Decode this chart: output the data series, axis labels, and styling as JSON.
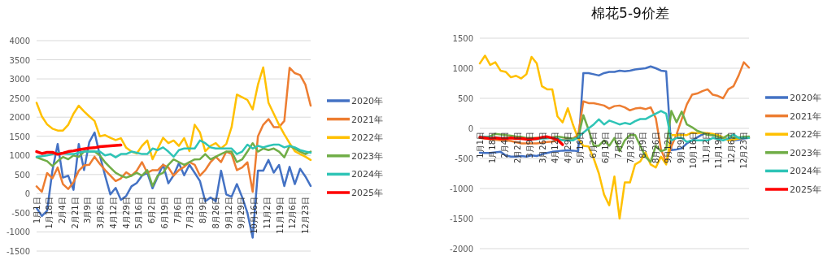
{
  "chart_data": [
    {
      "type": "line",
      "legend": "right",
      "grid": "y",
      "marker": "none",
      "line_style": "solid",
      "x": [
        "--01-01",
        "--01-08",
        "--01-15",
        "--01-22",
        "--01-29",
        "--02-05",
        "--02-12",
        "--02-19",
        "--02-26",
        "--03-04",
        "--03-11",
        "--03-18",
        "--03-25",
        "--04-01",
        "--04-08",
        "--04-15",
        "--04-22",
        "--04-29",
        "--05-06",
        "--05-13",
        "--05-20",
        "--05-27",
        "--06-03",
        "--06-10",
        "--06-17",
        "--06-24",
        "--07-01",
        "--07-08",
        "--07-15",
        "--07-22",
        "--07-29",
        "--08-05",
        "--08-12",
        "--08-19",
        "--08-26",
        "--09-02",
        "--09-09",
        "--09-16",
        "--09-23",
        "--09-30",
        "--10-07",
        "--10-14",
        "--10-21",
        "--10-28",
        "--11-04",
        "--11-11",
        "--11-18",
        "--11-25",
        "--12-02",
        "--12-09",
        "--12-16",
        "--12-23",
        "--12-30"
      ],
      "xlim": [
        "--01-01",
        "--12-30"
      ],
      "xticks": [
        {
          "value": "--01-01",
          "label": "1月1日"
        },
        {
          "value": "--01-18",
          "label": "1月18日"
        },
        {
          "value": "--02-04",
          "label": "2月4日"
        },
        {
          "value": "--02-21",
          "label": "2月21日"
        },
        {
          "value": "--03-09",
          "label": "3月9日"
        },
        {
          "value": "--03-26",
          "label": "3月26日"
        },
        {
          "value": "--04-12",
          "label": "4月12日"
        },
        {
          "value": "--04-29",
          "label": "4月29日"
        },
        {
          "value": "--05-16",
          "label": "5月16日"
        },
        {
          "value": "--06-02",
          "label": "6月2日"
        },
        {
          "value": "--06-19",
          "label": "6月19日"
        },
        {
          "value": "--07-06",
          "label": "7月6日"
        },
        {
          "value": "--07-23",
          "label": "7月23日"
        },
        {
          "value": "--08-09",
          "label": "8月9日"
        },
        {
          "value": "--08-26",
          "label": "8月26日"
        },
        {
          "value": "--09-12",
          "label": "9月12日"
        },
        {
          "value": "--09-29",
          "label": "9月29日"
        },
        {
          "value": "--10-16",
          "label": "10月16日"
        },
        {
          "value": "--11-02",
          "label": "11月2日"
        },
        {
          "value": "--11-19",
          "label": "11月19日"
        },
        {
          "value": "--12-06",
          "label": "12月6日"
        },
        {
          "value": "--12-23",
          "label": "12月23日"
        }
      ],
      "ylim": [
        -1500,
        4000
      ],
      "yticks": [
        -1500,
        -1000,
        -500,
        0,
        500,
        1000,
        1500,
        2000,
        2500,
        3000,
        3500,
        4000
      ],
      "series": [
        {
          "name": "2020年",
          "color": "#4472c4",
          "values": [
            -375,
            -585,
            -445,
            600,
            1300,
            420,
            470,
            100,
            1300,
            620,
            1350,
            1600,
            1000,
            470,
            -20,
            150,
            -160,
            -60,
            190,
            280,
            470,
            545,
            140,
            450,
            760,
            270,
            480,
            800,
            480,
            755,
            545,
            330,
            -200,
            -100,
            -200,
            600,
            -20,
            -80,
            250,
            -90,
            -500,
            -1150,
            600,
            600,
            880,
            550,
            750,
            200,
            700,
            250,
            650,
            450,
            200
          ]
        },
        {
          "name": "2021年",
          "color": "#ed7d31",
          "values": [
            190,
            50,
            540,
            400,
            685,
            250,
            120,
            300,
            600,
            740,
            755,
            965,
            780,
            615,
            470,
            330,
            400,
            560,
            470,
            600,
            825,
            545,
            615,
            615,
            755,
            685,
            470,
            615,
            700,
            825,
            755,
            470,
            615,
            825,
            965,
            825,
            1100,
            1035,
            615,
            685,
            820,
            50,
            1500,
            1800,
            1950,
            1740,
            1740,
            1900,
            3290,
            3150,
            3100,
            2850,
            2300
          ]
        },
        {
          "name": "2022年",
          "color": "#ffc000",
          "values": [
            2375,
            2020,
            1810,
            1700,
            1650,
            1650,
            1800,
            2090,
            2300,
            2150,
            2020,
            1900,
            1500,
            1530,
            1460,
            1400,
            1450,
            1200,
            1100,
            1050,
            1250,
            1390,
            900,
            1180,
            1460,
            1320,
            1390,
            1250,
            1450,
            1110,
            1800,
            1600,
            1110,
            1250,
            1320,
            1180,
            1300,
            1740,
            2590,
            2520,
            2450,
            2200,
            2850,
            3300,
            2375,
            2090,
            1800,
            1550,
            1320,
            1110,
            1035,
            965,
            880
          ]
        },
        {
          "name": "2023年",
          "color": "#70ad47",
          "values": [
            950,
            900,
            850,
            720,
            850,
            960,
            900,
            1000,
            960,
            1100,
            1100,
            1100,
            1000,
            820,
            680,
            545,
            470,
            420,
            470,
            545,
            470,
            615,
            200,
            480,
            545,
            755,
            895,
            825,
            755,
            825,
            895,
            900,
            1035,
            895,
            965,
            1035,
            1100,
            1100,
            825,
            895,
            1100,
            1320,
            1100,
            1180,
            1140,
            1180,
            1100,
            950,
            1250,
            1180,
            1100,
            1035,
            1100
          ]
        },
        {
          "name": "2024年",
          "color": "#2ec4b6",
          "values": [
            965,
            980,
            1000,
            1030,
            1070,
            1050,
            1040,
            1035,
            1070,
            1100,
            1100,
            1100,
            1100,
            1000,
            1035,
            950,
            1035,
            1035,
            1100,
            1070,
            1035,
            1035,
            1180,
            1140,
            1210,
            1100,
            965,
            1140,
            1180,
            1180,
            1180,
            1390,
            1320,
            1210,
            1180,
            1180,
            1180,
            1180,
            1035,
            1100,
            1280,
            1180,
            1250,
            1210,
            1250,
            1280,
            1280,
            1210,
            1250,
            1210,
            1140,
            1100,
            1070
          ]
        },
        {
          "name": "2025年",
          "color": "#ff0000",
          "values": [
            1100,
            1050,
            1080,
            1080,
            1030,
            1060,
            1100,
            1120,
            1150,
            1170,
            1190,
            1200,
            1230,
            1240,
            1250,
            1260,
            1270,
            null,
            null,
            null,
            null,
            null,
            null,
            null,
            null,
            null,
            null,
            null,
            null,
            null,
            null,
            null,
            null,
            null,
            null,
            null,
            null,
            null,
            null,
            null,
            null,
            null,
            null,
            null,
            null,
            null,
            null,
            null,
            null,
            null,
            null,
            null,
            null
          ]
        }
      ]
    },
    {
      "type": "line",
      "title": "棉花5-9价差",
      "legend": "right",
      "grid": "y",
      "marker": "none",
      "line_style": "solid",
      "x": [
        "--01-01",
        "--01-08",
        "--01-15",
        "--01-22",
        "--01-29",
        "--02-05",
        "--02-12",
        "--02-19",
        "--02-26",
        "--03-04",
        "--03-11",
        "--03-18",
        "--03-25",
        "--04-01",
        "--04-08",
        "--04-15",
        "--04-22",
        "--04-29",
        "--05-06",
        "--05-13",
        "--05-20",
        "--05-27",
        "--06-03",
        "--06-10",
        "--06-17",
        "--06-24",
        "--07-01",
        "--07-08",
        "--07-15",
        "--07-22",
        "--07-29",
        "--08-05",
        "--08-12",
        "--08-19",
        "--08-26",
        "--09-02",
        "--09-09",
        "--09-16",
        "--09-23",
        "--09-30",
        "--10-07",
        "--10-14",
        "--10-21",
        "--10-28",
        "--11-04",
        "--11-11",
        "--11-18",
        "--11-25",
        "--12-02",
        "--12-09",
        "--12-16",
        "--12-23",
        "--12-30"
      ],
      "xlim": [
        "--01-01",
        "--12-30"
      ],
      "xticks": [
        {
          "value": "--01-01",
          "label": "1月1日"
        },
        {
          "value": "--01-18",
          "label": "1月18日"
        },
        {
          "value": "--02-04",
          "label": "2月4日"
        },
        {
          "value": "--02-21",
          "label": "2月21日"
        },
        {
          "value": "--03-09",
          "label": "3月9日"
        },
        {
          "value": "--03-26",
          "label": "3月26日"
        },
        {
          "value": "--04-12",
          "label": "4月12日"
        },
        {
          "value": "--04-29",
          "label": "4月29日"
        },
        {
          "value": "--05-16",
          "label": "5月16日"
        },
        {
          "value": "--06-02",
          "label": "6月2日"
        },
        {
          "value": "--06-19",
          "label": "6月19日"
        },
        {
          "value": "--07-06",
          "label": "7月6日"
        },
        {
          "value": "--07-23",
          "label": "7月23日"
        },
        {
          "value": "--08-09",
          "label": "8月9日"
        },
        {
          "value": "--08-26",
          "label": "8月26日"
        },
        {
          "value": "--09-12",
          "label": "9月12日"
        },
        {
          "value": "--09-29",
          "label": "9月29日"
        },
        {
          "value": "--10-16",
          "label": "10月16日"
        },
        {
          "value": "--11-02",
          "label": "11月2日"
        },
        {
          "value": "--11-19",
          "label": "11月19日"
        },
        {
          "value": "--12-06",
          "label": "12月6日"
        },
        {
          "value": "--12-23",
          "label": "12月23日"
        }
      ],
      "ylim": [
        -2000,
        1500
      ],
      "yticks": [
        -2000,
        -1500,
        -1000,
        -500,
        0,
        500,
        1000,
        1500
      ],
      "series": [
        {
          "name": "2020年",
          "color": "#4472c4",
          "values": [
            -405,
            -410,
            -410,
            -400,
            -390,
            -450,
            -470,
            -470,
            -460,
            -470,
            -450,
            -460,
            -430,
            -410,
            -390,
            -380,
            -370,
            -365,
            -370,
            -380,
            920,
            920,
            900,
            880,
            920,
            940,
            940,
            960,
            950,
            960,
            980,
            990,
            1000,
            1030,
            1000,
            960,
            950,
            -360,
            -350,
            -330,
            -250,
            -200,
            -150,
            -100,
            -80,
            -120,
            -130,
            -160,
            -180,
            -200,
            -190,
            -170,
            -160
          ]
        },
        {
          "name": "2021年",
          "color": "#ed7d31",
          "values": [
            -160,
            -170,
            -180,
            -190,
            -200,
            -200,
            -210,
            -230,
            -250,
            -250,
            -250,
            -250,
            -240,
            -225,
            -220,
            -200,
            -190,
            -180,
            -170,
            -110,
            450,
            420,
            420,
            400,
            380,
            330,
            370,
            380,
            350,
            300,
            330,
            340,
            320,
            350,
            170,
            -350,
            -560,
            -300,
            -100,
            150,
            400,
            560,
            580,
            620,
            650,
            560,
            540,
            500,
            650,
            700,
            880,
            1100,
            1010
          ]
        },
        {
          "name": "2022年",
          "color": "#ffc000",
          "values": [
            1080,
            1210,
            1055,
            1100,
            960,
            940,
            850,
            875,
            830,
            900,
            1190,
            1080,
            700,
            650,
            650,
            200,
            100,
            335,
            60,
            -170,
            -290,
            -300,
            -500,
            -750,
            -1100,
            -1280,
            -800,
            -1500,
            -900,
            -900,
            -600,
            -550,
            -400,
            -600,
            -650,
            -470,
            -600,
            -110,
            -110,
            -110,
            -110,
            -70,
            -80,
            -70,
            -80,
            -90,
            -110,
            -150,
            -200,
            -190,
            -170,
            -160,
            -160
          ]
        },
        {
          "name": "2023年",
          "color": "#70ad47",
          "values": [
            -160,
            -150,
            -130,
            -90,
            -100,
            -110,
            -120,
            -135,
            -140,
            -160,
            -160,
            -160,
            -160,
            -160,
            -150,
            -135,
            -150,
            -160,
            -170,
            -160,
            220,
            -20,
            -290,
            -290,
            -200,
            -290,
            -160,
            -380,
            -200,
            -110,
            -110,
            -290,
            -470,
            -560,
            -290,
            -380,
            -350,
            290,
            100,
            280,
            65,
            20,
            -40,
            -70,
            -110,
            -110,
            -140,
            -160,
            -110,
            -160,
            -150,
            -140,
            -135
          ]
        },
        {
          "name": "2024年",
          "color": "#2ec4b6",
          "values": [
            -135,
            -140,
            -145,
            -150,
            -155,
            -160,
            -160,
            -165,
            -170,
            -175,
            -180,
            -180,
            -170,
            -165,
            -160,
            -170,
            -200,
            -200,
            -200,
            -150,
            -70,
            0,
            65,
            150,
            65,
            130,
            100,
            65,
            90,
            70,
            120,
            155,
            155,
            200,
            245,
            290,
            245,
            -200,
            -160,
            -160,
            -225,
            -200,
            -200,
            -200,
            -200,
            -160,
            -180,
            -200,
            -170,
            -100,
            -160,
            -160,
            -160
          ]
        },
        {
          "name": "2025年",
          "color": "#ff0000",
          "values": [
            -150,
            -160,
            -170,
            -160,
            -170,
            -170,
            -160,
            -170,
            -170,
            -180,
            -180,
            -170,
            -150,
            -140,
            -160,
            -190,
            -270,
            null,
            null,
            null,
            null,
            null,
            null,
            null,
            null,
            null,
            null,
            null,
            null,
            null,
            null,
            null,
            null,
            null,
            null,
            null,
            null,
            null,
            null,
            null,
            null,
            null,
            null,
            null,
            null,
            null,
            null,
            null,
            null,
            null,
            null,
            null,
            null
          ]
        }
      ]
    }
  ]
}
